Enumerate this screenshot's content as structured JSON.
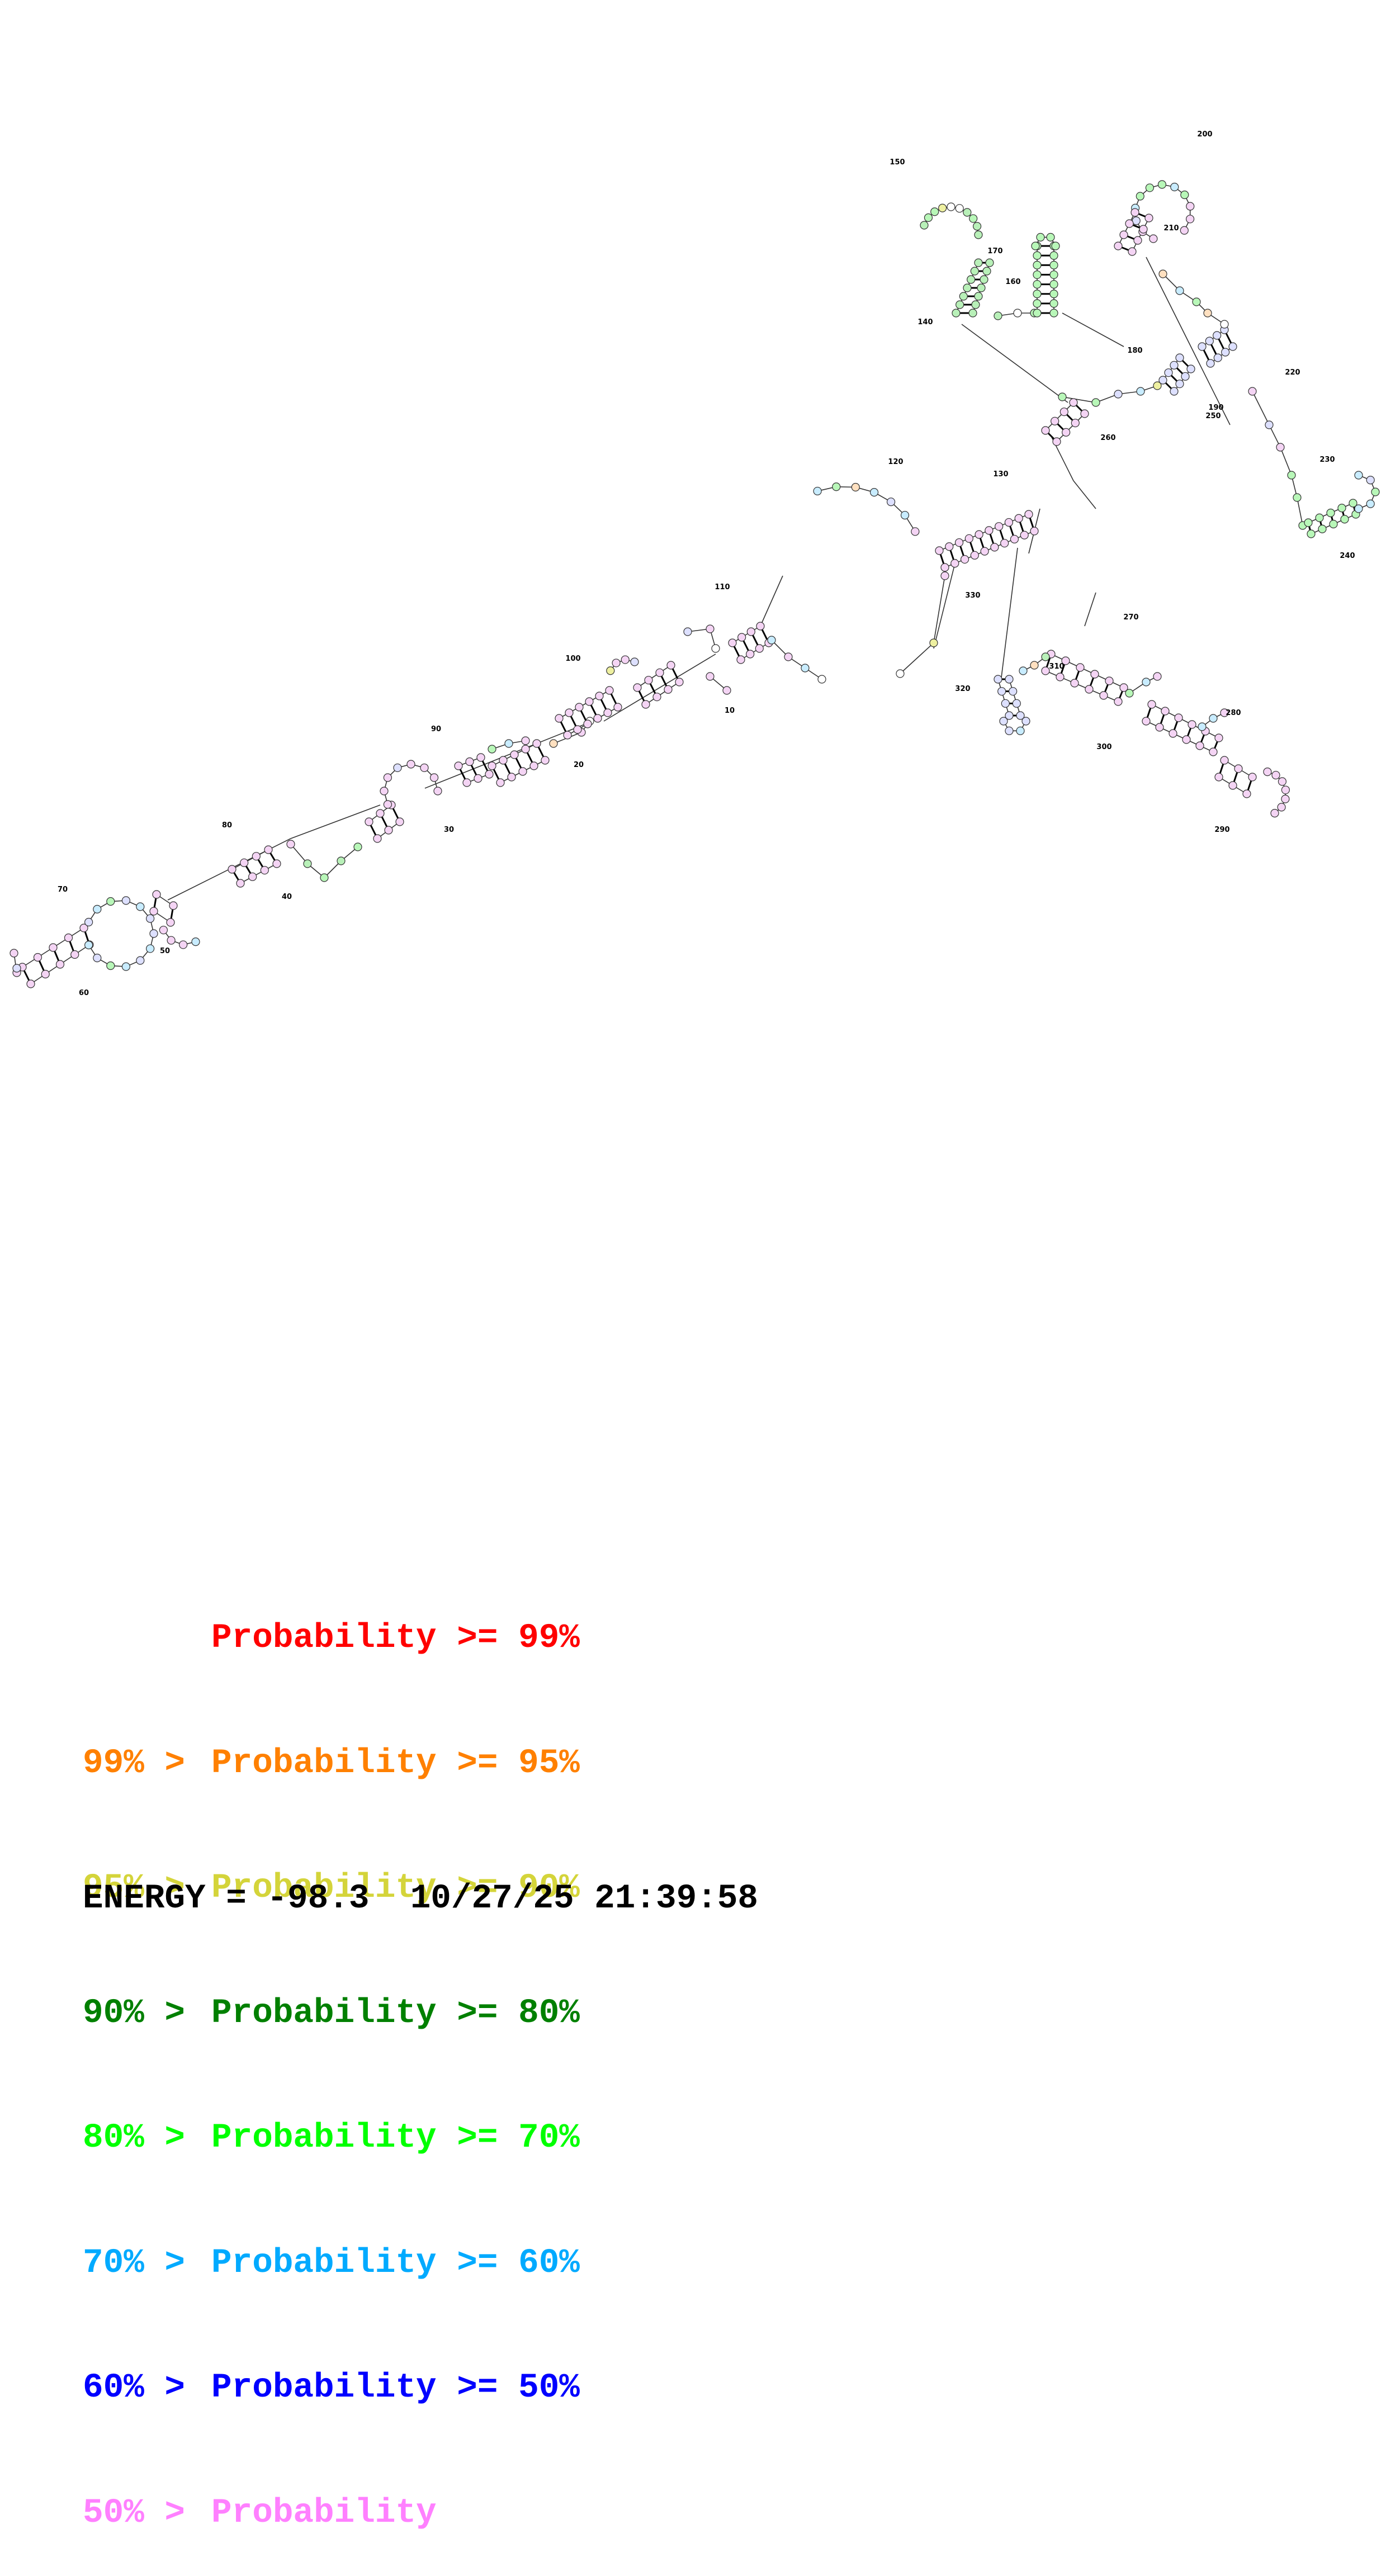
{
  "legend": {
    "rows": [
      {
        "prefix": "",
        "label": "Probability",
        "suffix": ">= 99%",
        "color": "#ff0000"
      },
      {
        "prefix": "99% >",
        "label": "Probability",
        "suffix": ">= 95%",
        "color": "#ff8000"
      },
      {
        "prefix": "95% >",
        "label": "Probability",
        "suffix": ">= 90%",
        "color": "#d4d43a"
      },
      {
        "prefix": "90% >",
        "label": "Probability",
        "suffix": ">= 80%",
        "color": "#008000"
      },
      {
        "prefix": "80% >",
        "label": "Probability",
        "suffix": ">= 70%",
        "color": "#00ff00"
      },
      {
        "prefix": "70% >",
        "label": "Probability",
        "suffix": ">= 60%",
        "color": "#00aaff"
      },
      {
        "prefix": "60% >",
        "label": "Probability",
        "suffix": ">= 50%",
        "color": "#0000ff"
      },
      {
        "prefix": "50% >",
        "label": "Probability",
        "suffix": "",
        "color": "#ff80ff"
      }
    ]
  },
  "footer": {
    "energy": "ENERGY = -98.3",
    "timestamp": "10/27/25 21:39:58"
  },
  "structure": {
    "index_labels": [
      "10",
      "20",
      "30",
      "40",
      "50",
      "60",
      "70",
      "80",
      "90",
      "100",
      "110",
      "120",
      "130",
      "140",
      "150",
      "160",
      "170",
      "180",
      "190",
      "200",
      "210",
      "220",
      "230",
      "240",
      "250",
      "260",
      "270",
      "280",
      "290",
      "300",
      "310",
      "320",
      "330"
    ]
  }
}
